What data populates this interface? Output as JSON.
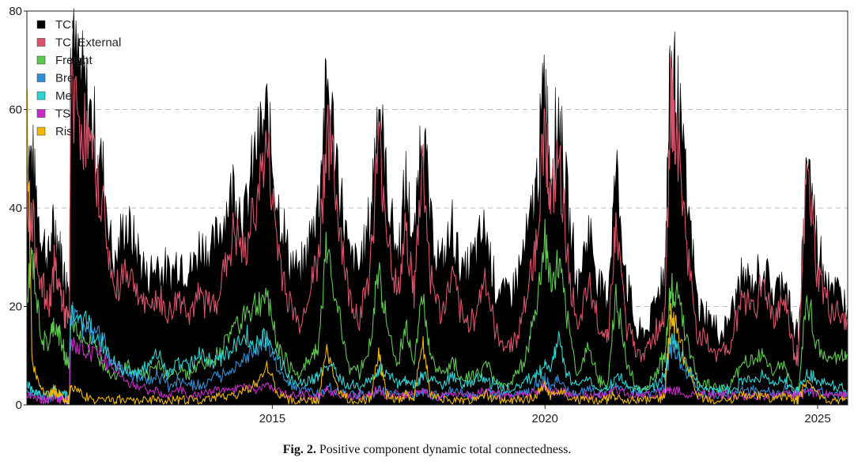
{
  "figure": {
    "caption_label": "Fig. 2.",
    "caption_text": "Positive component dynamic total connectedness."
  },
  "chart_data": {
    "type": "area",
    "title": "",
    "xlabel": "",
    "ylabel": "",
    "xlim": [
      2010.5,
      2025.55
    ],
    "ylim": [
      0,
      80
    ],
    "yticks": [
      0,
      20,
      40,
      60,
      80
    ],
    "xticks": [
      2015,
      2020,
      2025
    ],
    "grid": "dashed horizontal at 20, 40, 60",
    "legend_position": "top-left",
    "x": [
      2010.5,
      2010.6,
      2010.75,
      2010.9,
      2011.0,
      2011.1,
      2011.2,
      2011.28,
      2011.3,
      2011.5,
      2011.7,
      2011.9,
      2012.1,
      2012.3,
      2012.5,
      2012.7,
      2012.9,
      2013.1,
      2013.3,
      2013.5,
      2013.7,
      2013.9,
      2014.1,
      2014.3,
      2014.5,
      2014.7,
      2014.9,
      2015.1,
      2015.3,
      2015.5,
      2015.7,
      2015.85,
      2016.0,
      2016.2,
      2016.4,
      2016.6,
      2016.8,
      2016.95,
      2017.1,
      2017.3,
      2017.45,
      2017.6,
      2017.75,
      2017.9,
      2018.1,
      2018.3,
      2018.5,
      2018.7,
      2018.9,
      2019.1,
      2019.3,
      2019.5,
      2019.7,
      2019.85,
      2020.0,
      2020.1,
      2020.25,
      2020.4,
      2020.6,
      2020.8,
      2021.0,
      2021.15,
      2021.3,
      2021.5,
      2021.7,
      2021.9,
      2022.1,
      2022.2,
      2022.3,
      2022.4,
      2022.6,
      2022.8,
      2023.0,
      2023.2,
      2023.4,
      2023.6,
      2023.8,
      2024.0,
      2024.2,
      2024.4,
      2024.55,
      2024.65,
      2024.8,
      2025.0,
      2025.2,
      2025.4,
      2025.55
    ],
    "series": [
      {
        "name": "TCI",
        "color": "#000000",
        "fill": true,
        "values": [
          52,
          50,
          35,
          30,
          36,
          32,
          26,
          24,
          72,
          66,
          58,
          47,
          28,
          37,
          32,
          26,
          29,
          26,
          30,
          27,
          33,
          31,
          38,
          45,
          38,
          52,
          58,
          42,
          30,
          26,
          34,
          42,
          66,
          48,
          30,
          28,
          38,
          64,
          44,
          30,
          45,
          32,
          60,
          36,
          28,
          36,
          26,
          30,
          36,
          24,
          22,
          26,
          35,
          45,
          67,
          48,
          60,
          42,
          24,
          36,
          24,
          22,
          48,
          25,
          14,
          16,
          24,
          28,
          70,
          66,
          42,
          20,
          18,
          14,
          18,
          26,
          24,
          28,
          22,
          27,
          15,
          14,
          52,
          32,
          26,
          22,
          20
        ]
      },
      {
        "name": "TCI External",
        "color": "#d9536b",
        "fill": false,
        "values": [
          42,
          38,
          25,
          20,
          28,
          24,
          18,
          17,
          62,
          58,
          50,
          40,
          22,
          28,
          24,
          19,
          22,
          18,
          22,
          19,
          22,
          20,
          26,
          35,
          30,
          42,
          52,
          32,
          21,
          16,
          24,
          30,
          57,
          40,
          22,
          18,
          28,
          54,
          36,
          22,
          36,
          22,
          50,
          26,
          18,
          26,
          16,
          18,
          26,
          14,
          12,
          14,
          24,
          34,
          58,
          40,
          50,
          32,
          14,
          24,
          16,
          14,
          36,
          16,
          10,
          12,
          16,
          20,
          62,
          56,
          32,
          14,
          12,
          10,
          12,
          22,
          20,
          24,
          18,
          22,
          11,
          10,
          48,
          26,
          20,
          18,
          16
        ]
      },
      {
        "name": "Freight",
        "color": "#5ec74f",
        "fill": false,
        "values": [
          22,
          30,
          14,
          12,
          16,
          14,
          10,
          8,
          17,
          14,
          12,
          9,
          6,
          8,
          7,
          6,
          8,
          6,
          7,
          6,
          9,
          8,
          12,
          16,
          19,
          20,
          22,
          12,
          8,
          6,
          10,
          12,
          32,
          20,
          8,
          7,
          12,
          28,
          16,
          8,
          16,
          9,
          22,
          10,
          6,
          9,
          5,
          6,
          8,
          5,
          4,
          6,
          12,
          20,
          34,
          24,
          28,
          18,
          6,
          12,
          5,
          4,
          22,
          8,
          3,
          4,
          8,
          10,
          24,
          22,
          14,
          5,
          4,
          3,
          4,
          8,
          9,
          10,
          7,
          9,
          3,
          3,
          22,
          12,
          9,
          10,
          10
        ]
      },
      {
        "name": "Bre",
        "color": "#2f8fd6",
        "fill": false,
        "values": [
          3,
          2,
          2,
          1,
          2,
          2,
          1,
          1,
          18,
          17,
          15,
          13,
          8,
          7,
          6,
          5,
          6,
          4,
          5,
          4,
          4,
          5,
          6,
          8,
          10,
          12,
          13,
          7,
          4,
          3,
          3,
          2,
          4,
          3,
          2,
          2,
          2,
          3,
          3,
          2,
          2,
          2,
          3,
          2,
          2,
          3,
          2,
          2,
          3,
          2,
          2,
          2,
          3,
          4,
          5,
          4,
          5,
          3,
          2,
          3,
          2,
          2,
          4,
          3,
          2,
          2,
          3,
          4,
          12,
          10,
          6,
          3,
          2,
          2,
          2,
          3,
          3,
          3,
          2,
          3,
          2,
          2,
          3,
          3,
          2,
          2,
          2
        ]
      },
      {
        "name": "Me",
        "color": "#2ed3d3",
        "fill": false,
        "values": [
          4,
          3,
          2,
          2,
          3,
          2,
          2,
          1,
          19,
          17,
          15,
          12,
          8,
          7,
          6,
          8,
          10,
          7,
          9,
          8,
          10,
          9,
          10,
          12,
          14,
          12,
          14,
          9,
          6,
          4,
          5,
          6,
          8,
          6,
          4,
          4,
          5,
          7,
          6,
          4,
          5,
          4,
          6,
          5,
          4,
          6,
          4,
          5,
          5,
          4,
          3,
          4,
          5,
          6,
          8,
          7,
          14,
          6,
          4,
          5,
          3,
          3,
          6,
          4,
          3,
          3,
          5,
          6,
          14,
          12,
          8,
          4,
          3,
          3,
          3,
          5,
          5,
          6,
          4,
          5,
          3,
          3,
          6,
          5,
          4,
          4,
          3
        ]
      },
      {
        "name": "TS",
        "color": "#c62bc6",
        "fill": false,
        "values": [
          2,
          2,
          1,
          1,
          2,
          1,
          1,
          1,
          12,
          11,
          11,
          10,
          7,
          5,
          4,
          3,
          3,
          2,
          3,
          2,
          2,
          3,
          3,
          3,
          4,
          3,
          4,
          3,
          2,
          2,
          2,
          2,
          3,
          2,
          2,
          2,
          2,
          3,
          2,
          2,
          2,
          2,
          3,
          2,
          2,
          2,
          2,
          2,
          3,
          2,
          2,
          2,
          2,
          3,
          4,
          3,
          3,
          2,
          2,
          2,
          2,
          2,
          3,
          2,
          2,
          2,
          2,
          3,
          3,
          3,
          2,
          2,
          2,
          2,
          2,
          2,
          2,
          2,
          2,
          2,
          2,
          2,
          3,
          2,
          2,
          2,
          2
        ]
      },
      {
        "name": "Ris",
        "color": "#f0b800",
        "fill": false,
        "values": [
          60,
          8,
          3,
          2,
          3,
          2,
          1,
          1,
          4,
          2,
          1,
          1,
          1,
          1,
          1,
          1,
          1,
          1,
          1,
          1,
          1,
          1,
          2,
          2,
          3,
          4,
          8,
          2,
          1,
          1,
          1,
          1,
          12,
          3,
          1,
          1,
          1,
          10,
          2,
          1,
          2,
          1,
          14,
          2,
          1,
          1,
          1,
          1,
          2,
          1,
          1,
          1,
          1,
          2,
          4,
          2,
          3,
          2,
          1,
          1,
          1,
          1,
          2,
          1,
          1,
          1,
          1,
          2,
          18,
          16,
          8,
          2,
          1,
          1,
          1,
          2,
          2,
          2,
          1,
          2,
          1,
          1,
          5,
          2,
          1,
          1,
          1
        ]
      }
    ]
  }
}
